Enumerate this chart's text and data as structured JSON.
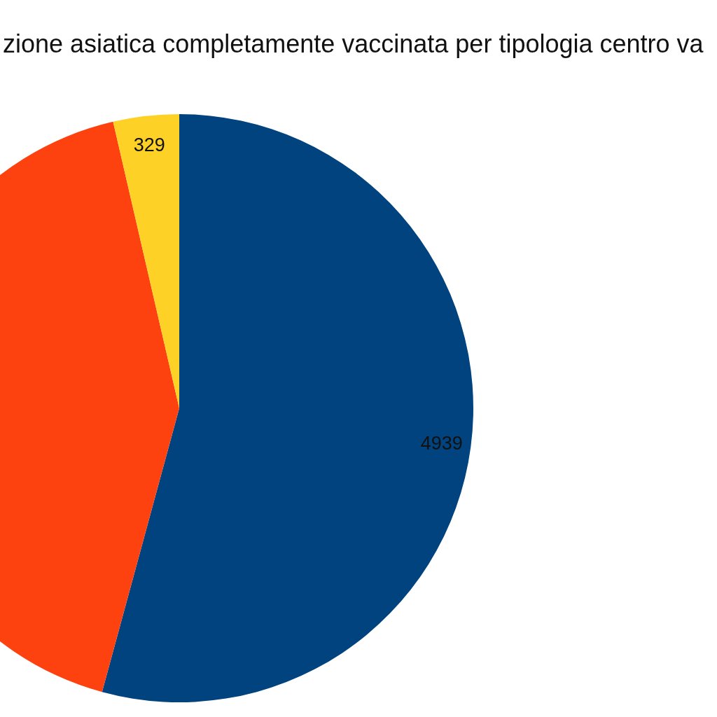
{
  "chart_data": {
    "type": "pie",
    "title": "zione asiatica completamente vaccinata per tipologia centro va",
    "categories": [
      null,
      null,
      null
    ],
    "values": [
      4939,
      3840,
      329
    ],
    "colors": [
      "#01437f",
      "#fe420f",
      "#fed127"
    ],
    "value_labels": [
      "4939",
      null,
      "329"
    ]
  }
}
